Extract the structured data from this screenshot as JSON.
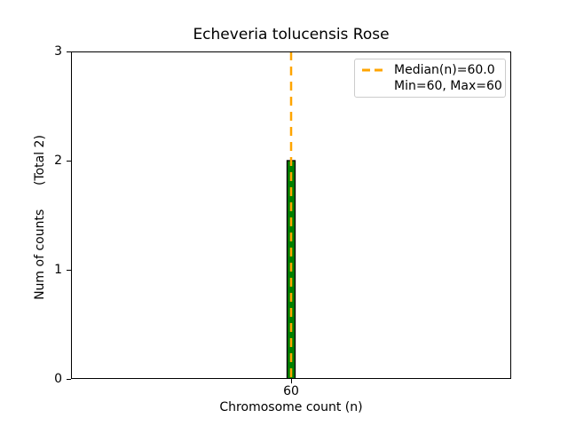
{
  "chart": {
    "title": "Echeveria tolucensis Rose",
    "xlabel": "Chromosome count (n)",
    "ylabel": "Num of counts      (Total 2)"
  },
  "legend": {
    "items": [
      {
        "label": "Median(n)=60.0",
        "marker": "orange-dashed-line"
      },
      {
        "label": "Min=60, Max=60",
        "marker": "none"
      }
    ]
  },
  "chart_data": {
    "type": "bar",
    "title": "Echeveria tolucensis Rose",
    "xlabel": "Chromosome count (n)",
    "ylabel": "Num of counts      (Total 2)",
    "x": [
      60
    ],
    "values": [
      2
    ],
    "total_counts": 2,
    "median": 60.0,
    "min": 60,
    "max": 60,
    "xlim": [
      38,
      82
    ],
    "ylim": [
      0,
      3
    ],
    "xticks": [
      60
    ],
    "yticks": [
      0,
      1,
      2,
      3
    ],
    "bar_width_data": 0.8,
    "grid": false,
    "legend_position": "upper right",
    "colors": {
      "bar_fill": "#008000",
      "bar_edge": "#000000",
      "median_line": "#FFA500",
      "spine": "#000000",
      "legend_border": "#cccccc",
      "text": "#000000"
    }
  }
}
